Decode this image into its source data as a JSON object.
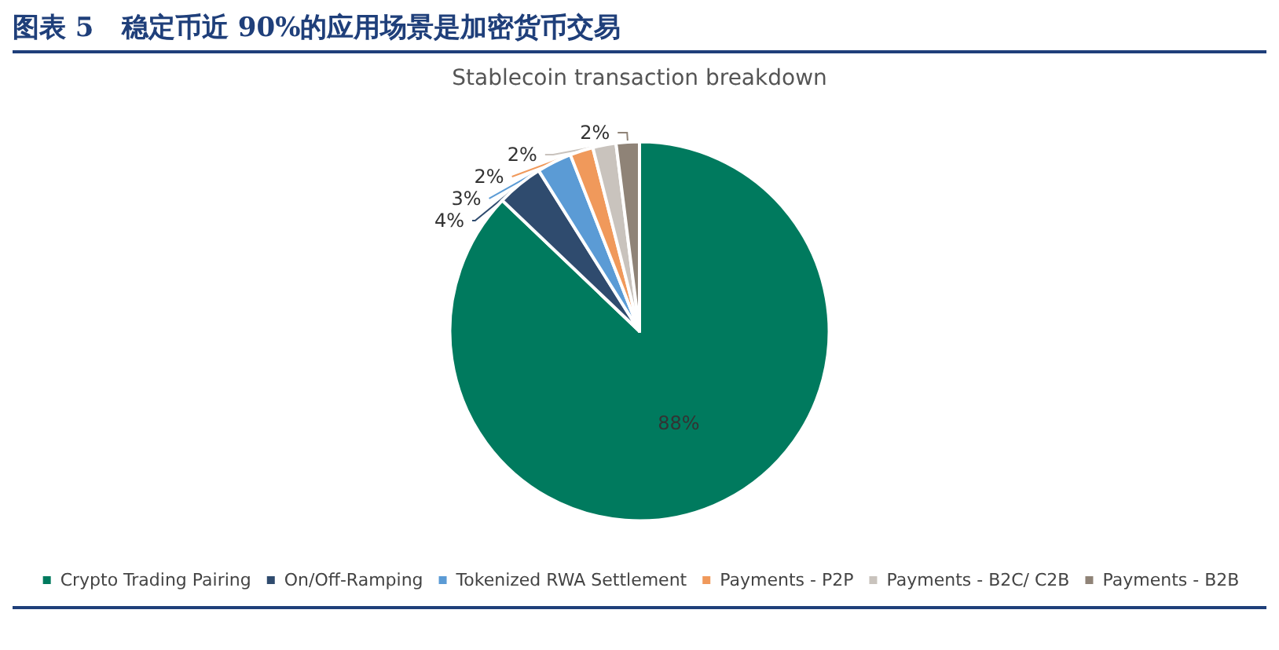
{
  "chart_data": {
    "type": "pie",
    "title": "图表 5   稳定币近 90%的应用场景是加密货币交易",
    "subtitle": "Stablecoin transaction breakdown",
    "categories": [
      "Crypto Trading Pairing",
      "On/Off-Ramping",
      "Tokenized RWA Settlement",
      "Payments - P2P",
      "Payments - B2C/ C2B",
      "Payments - B2B"
    ],
    "values": [
      88,
      4,
      3,
      2,
      2,
      2
    ],
    "colors": [
      "#007a5e",
      "#2f4b6e",
      "#5b9bd5",
      "#f0995b",
      "#c9c3bd",
      "#8f8377"
    ],
    "value_labels": [
      "88%",
      "4%",
      "3%",
      "2%",
      "2%",
      "2%"
    ],
    "legend": "bottom"
  }
}
